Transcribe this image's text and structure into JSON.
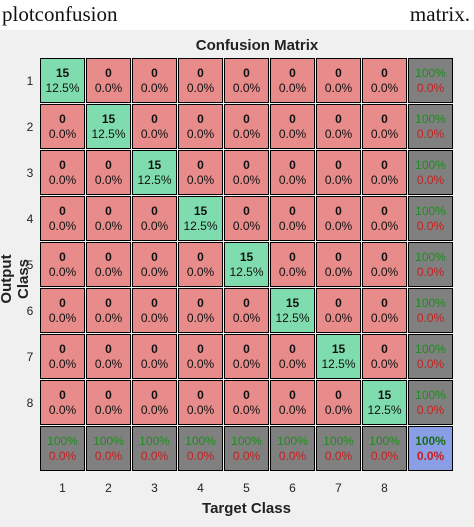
{
  "doc": {
    "left_text": "plotconfusion",
    "right_text": "matrix."
  },
  "chart_data": {
    "type": "heatmap",
    "title": "Confusion Matrix",
    "xlabel": "Target Class",
    "ylabel": "Output Class",
    "classes": [
      "1",
      "2",
      "3",
      "4",
      "5",
      "6",
      "7",
      "8"
    ],
    "matrix": [
      [
        15,
        0,
        0,
        0,
        0,
        0,
        0,
        0
      ],
      [
        0,
        15,
        0,
        0,
        0,
        0,
        0,
        0
      ],
      [
        0,
        0,
        15,
        0,
        0,
        0,
        0,
        0
      ],
      [
        0,
        0,
        0,
        15,
        0,
        0,
        0,
        0
      ],
      [
        0,
        0,
        0,
        0,
        15,
        0,
        0,
        0
      ],
      [
        0,
        0,
        0,
        0,
        0,
        15,
        0,
        0
      ],
      [
        0,
        0,
        0,
        0,
        0,
        0,
        15,
        0
      ],
      [
        0,
        0,
        0,
        0,
        0,
        0,
        0,
        15
      ]
    ],
    "diag_pct": "12.5%",
    "off_pct": "0.0%",
    "row_summary": [
      [
        "100%",
        "0.0%"
      ],
      [
        "100%",
        "0.0%"
      ],
      [
        "100%",
        "0.0%"
      ],
      [
        "100%",
        "0.0%"
      ],
      [
        "100%",
        "0.0%"
      ],
      [
        "100%",
        "0.0%"
      ],
      [
        "100%",
        "0.0%"
      ],
      [
        "100%",
        "0.0%"
      ]
    ],
    "col_summary": [
      [
        "100%",
        "0.0%"
      ],
      [
        "100%",
        "0.0%"
      ],
      [
        "100%",
        "0.0%"
      ],
      [
        "100%",
        "0.0%"
      ],
      [
        "100%",
        "0.0%"
      ],
      [
        "100%",
        "0.0%"
      ],
      [
        "100%",
        "0.0%"
      ],
      [
        "100%",
        "0.0%"
      ]
    ],
    "overall": [
      "100%",
      "0.0%"
    ],
    "colors": {
      "correct": "#7fdcae",
      "incorrect": "#e88b8b",
      "summary": "#808080",
      "overall": "#8a9ee6",
      "accuracy_text": "#1f8b1f",
      "error_text": "#c42020"
    }
  }
}
